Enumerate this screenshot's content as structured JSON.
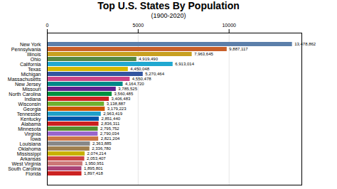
{
  "chart_data": {
    "type": "bar",
    "orientation": "horizontal",
    "title": "Top U.S. States By Population",
    "subtitle": "(1900-2020)",
    "categories": [
      "New York",
      "Pennsylvania",
      "Illinois",
      "Ohio",
      "California",
      "Texas",
      "Michigan",
      "Massachusetts",
      "New Jersey",
      "Missouri",
      "North Carolina",
      "Indiana",
      "Wisconsin",
      "Georgia",
      "Tennessee",
      "Kentucky",
      "Alabama",
      "Minnesota",
      "Virginia",
      "Iowa",
      "Louisiana",
      "Oklahoma",
      "Mississippi",
      "Arkansas",
      "West Virginia",
      "South Carolina",
      "Florida"
    ],
    "values": [
      13478862,
      9887117,
      7963645,
      4919490,
      6913014,
      4450048,
      5270464,
      4550478,
      4164720,
      3785525,
      3560485,
      3406483,
      3138887,
      3179223,
      2963419,
      2851440,
      2836311,
      2795752,
      2790034,
      2821204,
      2363885,
      2336780,
      2074214,
      2053407,
      1950951,
      1895801,
      1897418
    ],
    "value_labels": [
      "13,478,862",
      "9,887,117",
      "7,963,645",
      "4,919,490",
      "6,913,014",
      "4,450,048",
      "5,270,464",
      "4,550,478",
      "4,164,720",
      "3,785,525",
      "3,560,485",
      "3,406,483",
      "3,138,887",
      "3,179,223",
      "2,963,419",
      "2,851,440",
      "2,836,311",
      "2,795,752",
      "2,790,034",
      "2,821,204",
      "2,363,885",
      "2,336,780",
      "2,074,214",
      "2,053,407",
      "1,950,951",
      "1,895,801",
      "1,897,418"
    ],
    "colors": [
      "#5b7faa",
      "#c8602a",
      "#c8a020",
      "#558844",
      "#20a8d0",
      "#d4b800",
      "#3355a0",
      "#cc4488",
      "#008888",
      "#602090",
      "#009040",
      "#cc2020",
      "#70b030",
      "#cc5500",
      "#20a0c8",
      "#0055a8",
      "#cc2020",
      "#559030",
      "#9966cc",
      "#cc7744",
      "#888888",
      "#a08050",
      "#c8b000",
      "#cc4444",
      "#cc7777",
      "#aa4477",
      "#cc2222"
    ],
    "xlim": [
      0,
      14000000
    ],
    "xticks": [
      0,
      {
        "value": 5000000,
        "label": "5000"
      },
      {
        "value": 10000000,
        "label": "10000"
      }
    ],
    "grid": true,
    "data_labels": true
  }
}
